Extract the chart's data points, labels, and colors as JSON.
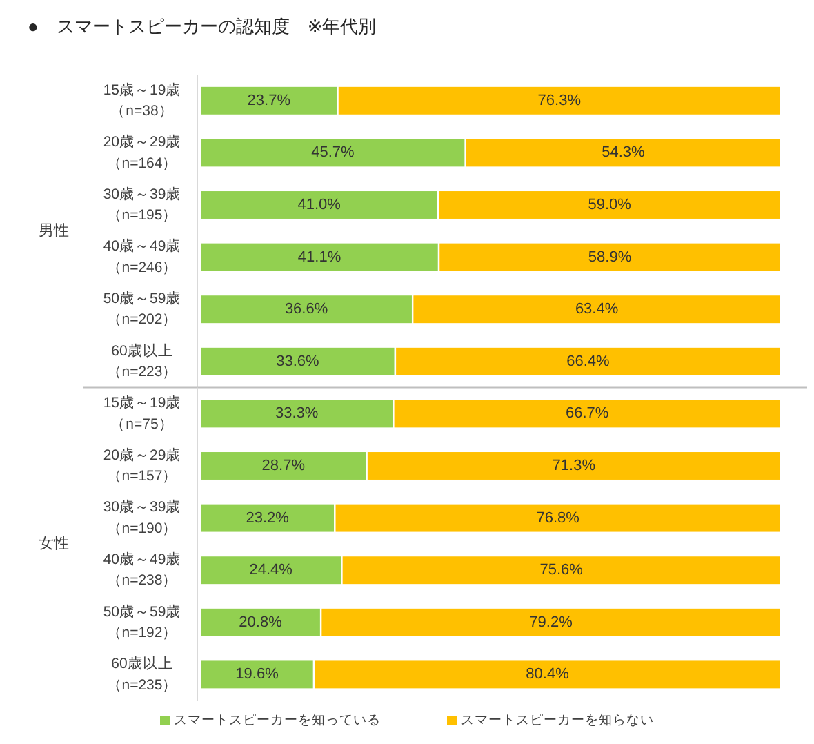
{
  "chart_data": [
    {
      "type": "bar",
      "orientation": "horizontal",
      "stacked": true,
      "title": "●　スマートスピーカーの認知度　※年代別",
      "ylabel": "男性",
      "tick_labels": "y",
      "xlim": [
        0,
        100
      ],
      "categories": [
        "15歳～19歳（n=38）",
        "20歳～29歳（n=164）",
        "30歳～39歳（n=195）",
        "40歳～49歳（n=246）",
        "50歳～59歳（n=202）",
        "60歳以上（n=223）"
      ],
      "series": [
        {
          "color": "#92d050",
          "values": [
            23.7,
            45.7,
            41.0,
            41.1,
            36.6,
            33.6
          ],
          "value_labels": [
            "23.7%",
            "45.7%",
            "41.0%",
            "41.1%",
            "36.6%",
            "33.6%"
          ]
        },
        {
          "color": "#ffc000",
          "values": [
            76.3,
            54.3,
            59.0,
            58.9,
            63.4,
            66.4
          ],
          "value_labels": [
            "76.3%",
            "54.3%",
            "59.0%",
            "58.9%",
            "63.4%",
            "66.4%"
          ]
        }
      ]
    },
    {
      "type": "bar",
      "orientation": "horizontal",
      "stacked": true,
      "ylabel": "女性",
      "tick_labels": "y",
      "xlim": [
        0,
        100
      ],
      "legend": "bottom",
      "categories": [
        "15歳～19歳（n=75）",
        "20歳～29歳（n=157）",
        "30歳～39歳（n=190）",
        "40歳～49歳（n=238）",
        "50歳～59歳（n=192）",
        "60歳以上（n=235）"
      ],
      "series": [
        {
          "name": "スマートスピーカーを知っている",
          "color": "#92d050",
          "values": [
            33.3,
            28.7,
            23.2,
            24.4,
            20.8,
            19.6
          ],
          "value_labels": [
            "33.3%",
            "28.7%",
            "23.2%",
            "24.4%",
            "20.8%",
            "19.6%"
          ]
        },
        {
          "name": "スマートスピーカーを知らない",
          "color": "#ffc000",
          "values": [
            66.7,
            71.3,
            76.8,
            75.6,
            79.2,
            80.4
          ],
          "value_labels": [
            "66.7%",
            "71.3%",
            "76.8%",
            "75.6%",
            "79.2%",
            "80.4%"
          ]
        }
      ]
    }
  ]
}
